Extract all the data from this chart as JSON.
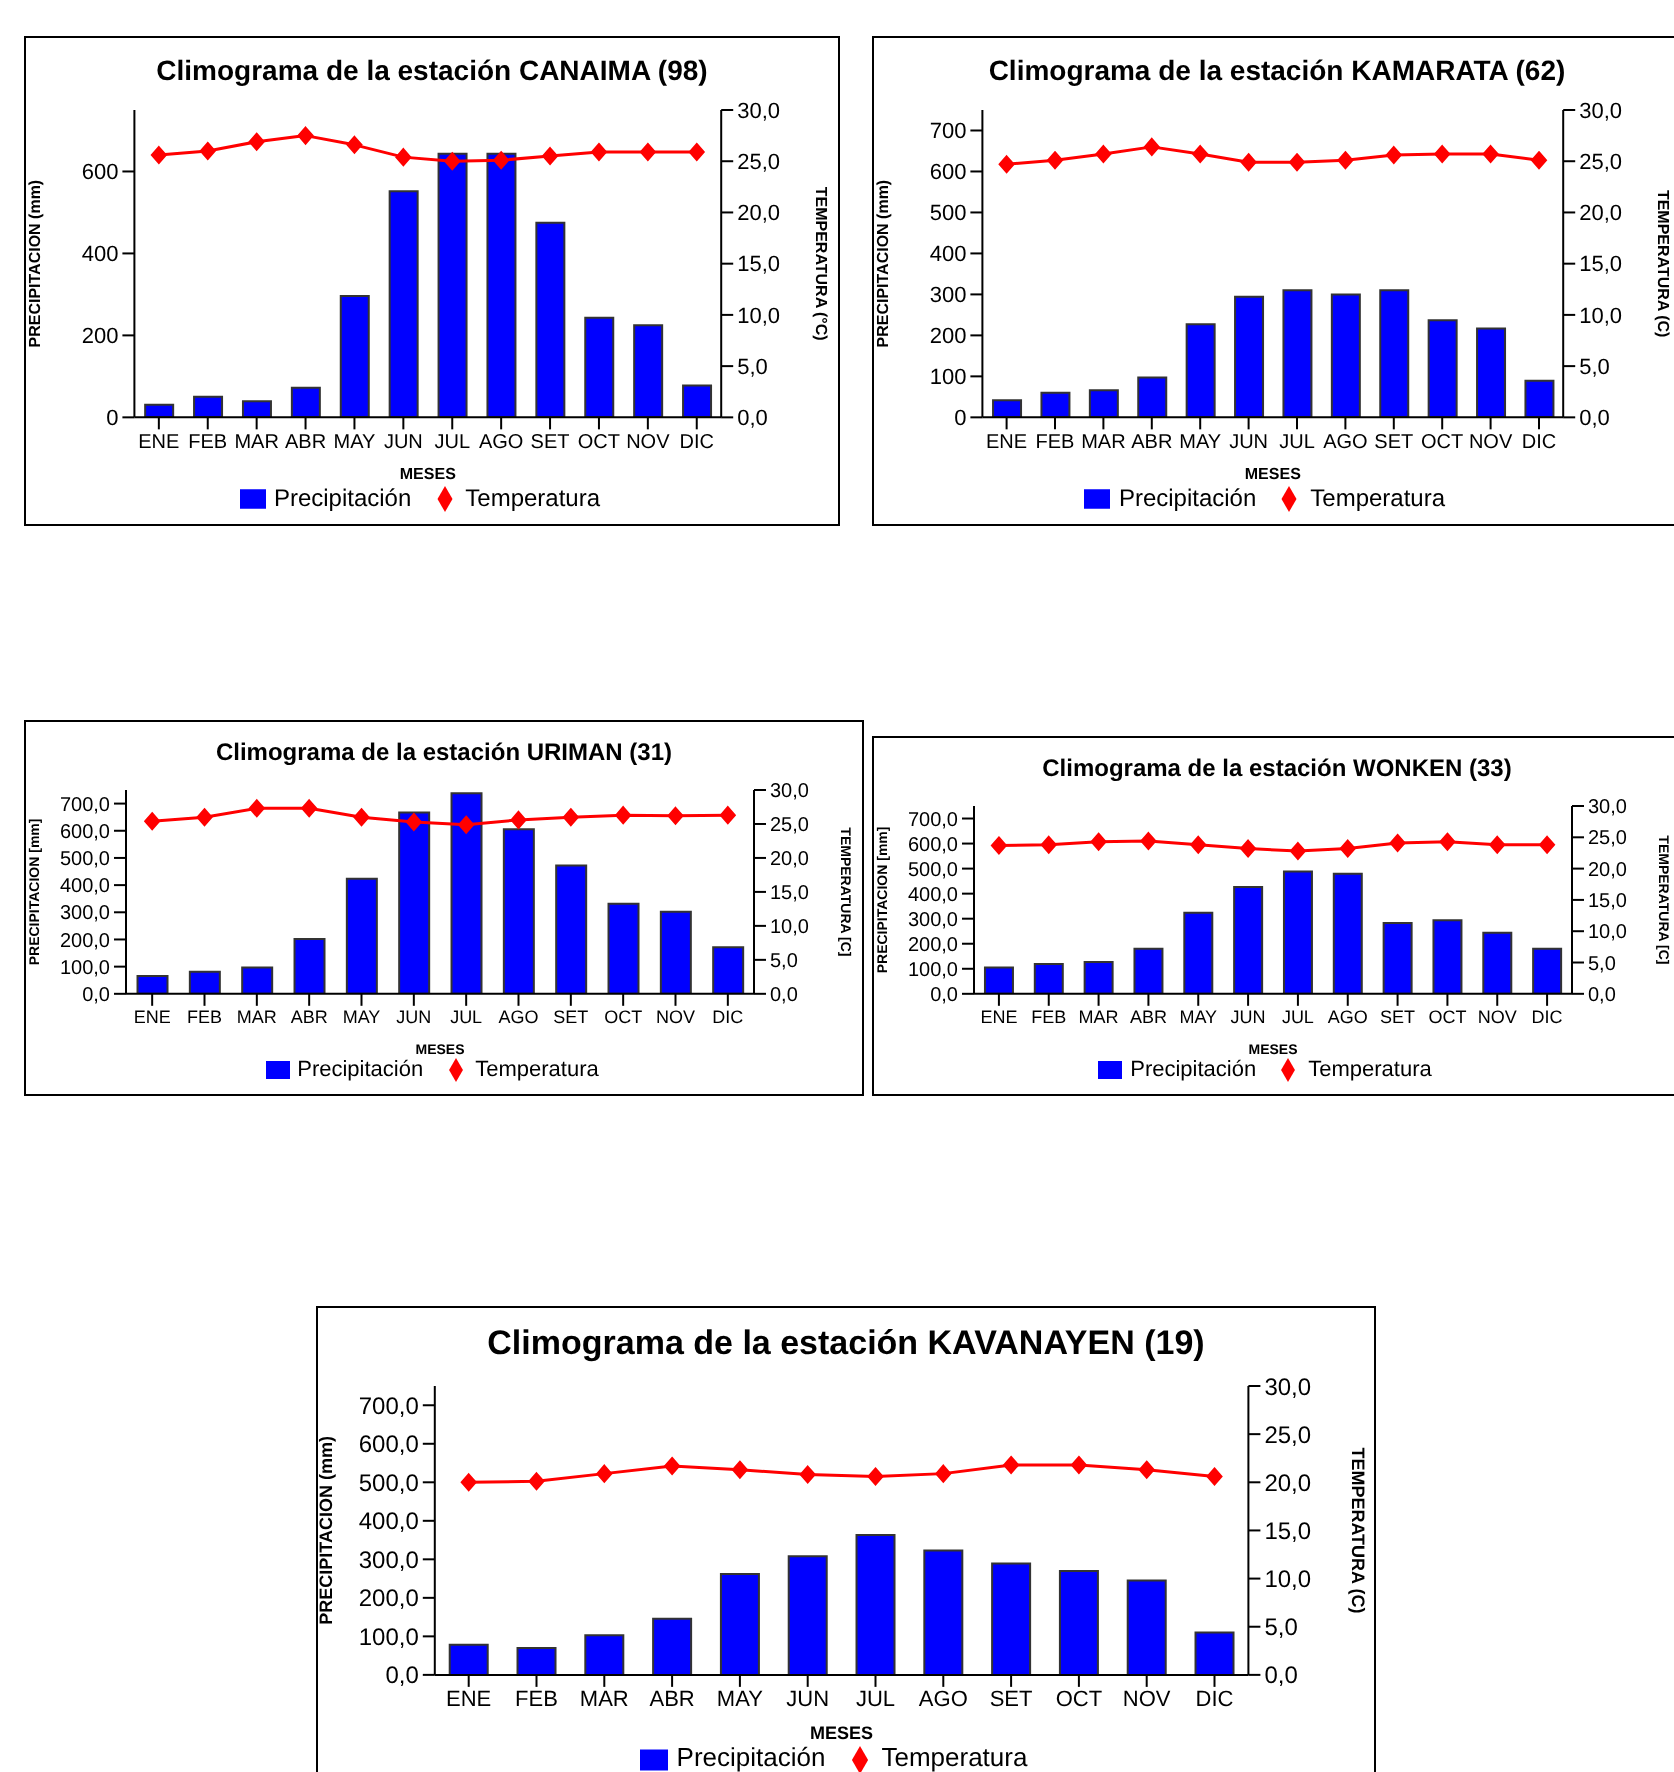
{
  "chart_data": [
    {
      "type": "bar",
      "title": "Climograma de la estación CANAIMA (98)",
      "xlabel": "MESES",
      "ylabel": "PRECIPITACION (mm)",
      "y2label": "TEMPERATURA (°C)",
      "categories": [
        "ENE",
        "FEB",
        "MAR",
        "ABR",
        "MAY",
        "JUN",
        "JUL",
        "AGO",
        "SET",
        "OCT",
        "NOV",
        "DIC"
      ],
      "series": [
        {
          "name": "Precipitación",
          "color": "#0000ff",
          "values": [
            31,
            50,
            39,
            72,
            296,
            552,
            643,
            643,
            475,
            243,
            225,
            78
          ]
        },
        {
          "name": "Temperatura",
          "type": "line",
          "axis": "y2",
          "color": "#ff0000",
          "marker": "diamond",
          "values": [
            25.6,
            26.0,
            26.9,
            27.5,
            26.6,
            25.4,
            25.0,
            25.1,
            25.5,
            25.9,
            25.9,
            25.9
          ]
        }
      ],
      "ylim": [
        0,
        750
      ],
      "yticks": [
        0,
        200,
        400,
        600
      ],
      "y2lim": [
        0,
        30
      ],
      "y2ticks": [
        {
          "value": 0,
          "label": "0,0"
        },
        {
          "value": 5,
          "label": "5,0"
        },
        {
          "value": 10,
          "label": "10,0"
        },
        {
          "value": 15,
          "label": "15,0"
        },
        {
          "value": 20,
          "label": "20,0"
        },
        {
          "value": 25,
          "label": "25,0"
        },
        {
          "value": 30,
          "label": "30,0"
        }
      ],
      "legend": "bottom",
      "grid": false
    },
    {
      "type": "bar",
      "title": "Climograma de la estación KAMARATA (62)",
      "xlabel": "MESES",
      "ylabel": "PRECIPITACION (mm)",
      "y2label": "TEMPERATURA (C)",
      "categories": [
        "ENE",
        "FEB",
        "MAR",
        "ABR",
        "MAY",
        "JUN",
        "JUL",
        "AGO",
        "SET",
        "OCT",
        "NOV",
        "DIC"
      ],
      "series": [
        {
          "name": "Precipitación",
          "color": "#0000ff",
          "values": [
            42,
            60,
            66,
            97,
            227,
            294,
            310,
            300,
            310,
            237,
            217,
            89
          ]
        },
        {
          "name": "Temperatura",
          "type": "line",
          "axis": "y2",
          "color": "#ff0000",
          "marker": "diamond",
          "values": [
            24.7,
            25.1,
            25.7,
            26.4,
            25.7,
            24.9,
            24.9,
            25.1,
            25.6,
            25.7,
            25.7,
            25.1
          ]
        }
      ],
      "ylim": [
        0,
        750
      ],
      "yticks": [
        0,
        100,
        200,
        300,
        400,
        500,
        600,
        700
      ],
      "y2lim": [
        0,
        30
      ],
      "y2ticks": [
        {
          "value": 0,
          "label": "0,0"
        },
        {
          "value": 5,
          "label": "5,0"
        },
        {
          "value": 10,
          "label": "10,0"
        },
        {
          "value": 15,
          "label": "15,0"
        },
        {
          "value": 20,
          "label": "20,0"
        },
        {
          "value": 25,
          "label": "25,0"
        },
        {
          "value": 30,
          "label": "30,0"
        }
      ],
      "legend": "bottom",
      "grid": false
    },
    {
      "type": "bar",
      "title": "Climograma de la estación URIMAN (31)",
      "xlabel": "MESES",
      "ylabel": "PRECIPITACION [mm]",
      "y2label": "TEMPERATURA [C]",
      "categories": [
        "ENE",
        "FEB",
        "MAR",
        "ABR",
        "MAY",
        "JUN",
        "JUL",
        "AGO",
        "SET",
        "OCT",
        "NOV",
        "DIC"
      ],
      "series": [
        {
          "name": "Precipitación",
          "color": "#0000ff",
          "values": [
            66,
            81,
            97,
            202,
            423,
            667,
            738,
            606,
            472,
            331,
            302,
            171
          ]
        },
        {
          "name": "Temperatura",
          "type": "line",
          "axis": "y2",
          "color": "#ff0000",
          "marker": "diamond",
          "values": [
            25.4,
            26.0,
            27.3,
            27.3,
            26.0,
            25.3,
            24.9,
            25.6,
            26.0,
            26.3,
            26.2,
            26.3
          ]
        }
      ],
      "ylim": [
        0,
        750
      ],
      "yticks": [
        {
          "value": 0,
          "label": "0,0"
        },
        {
          "value": 100,
          "label": "100,0"
        },
        {
          "value": 200,
          "label": "200,0"
        },
        {
          "value": 300,
          "label": "300,0"
        },
        {
          "value": 400,
          "label": "400,0"
        },
        {
          "value": 500,
          "label": "500,0"
        },
        {
          "value": 600,
          "label": "600,0"
        },
        {
          "value": 700,
          "label": "700,0"
        }
      ],
      "y2lim": [
        0,
        30
      ],
      "y2ticks": [
        {
          "value": 0,
          "label": "0,0"
        },
        {
          "value": 5,
          "label": "5,0"
        },
        {
          "value": 10,
          "label": "10,0"
        },
        {
          "value": 15,
          "label": "15,0"
        },
        {
          "value": 20,
          "label": "20,0"
        },
        {
          "value": 25,
          "label": "25,0"
        },
        {
          "value": 30,
          "label": "30,0"
        }
      ],
      "legend": "bottom",
      "grid": false
    },
    {
      "type": "bar",
      "title": "Climograma de la estación WONKEN (33)",
      "xlabel": "MESES",
      "ylabel": "PRECIPITACION [mm]",
      "y2label": "TEMPERATURA [C]",
      "categories": [
        "ENE",
        "FEB",
        "MAR",
        "ABR",
        "MAY",
        "JUN",
        "JUL",
        "AGO",
        "SET",
        "OCT",
        "NOV",
        "DIC"
      ],
      "series": [
        {
          "name": "Precipitación",
          "color": "#0000ff",
          "values": [
            105,
            119,
            127,
            180,
            324,
            427,
            488,
            479,
            283,
            294,
            244,
            180
          ]
        },
        {
          "name": "Temperatura",
          "type": "line",
          "axis": "y2",
          "color": "#ff0000",
          "marker": "diamond",
          "values": [
            23.7,
            23.8,
            24.3,
            24.4,
            23.8,
            23.2,
            22.8,
            23.2,
            24.1,
            24.3,
            23.8,
            23.8
          ]
        }
      ],
      "ylim": [
        0,
        750
      ],
      "yticks": [
        {
          "value": 0,
          "label": "0,0"
        },
        {
          "value": 100,
          "label": "100,0"
        },
        {
          "value": 200,
          "label": "200,0"
        },
        {
          "value": 300,
          "label": "300,0"
        },
        {
          "value": 400,
          "label": "400,0"
        },
        {
          "value": 500,
          "label": "500,0"
        },
        {
          "value": 600,
          "label": "600,0"
        },
        {
          "value": 700,
          "label": "700,0"
        }
      ],
      "y2lim": [
        0,
        30
      ],
      "y2ticks": [
        {
          "value": 0,
          "label": "0,0"
        },
        {
          "value": 5,
          "label": "5,0"
        },
        {
          "value": 10,
          "label": "10,0"
        },
        {
          "value": 15,
          "label": "15,0"
        },
        {
          "value": 20,
          "label": "20,0"
        },
        {
          "value": 25,
          "label": "25,0"
        },
        {
          "value": 30,
          "label": "30,0"
        }
      ],
      "legend": "bottom",
      "grid": false
    },
    {
      "type": "bar",
      "title": "Climograma de la estación KAVANAYEN (19)",
      "xlabel": "MESES",
      "ylabel": "PRECIPITACION (mm)",
      "y2label": "TEMPERATURA (C)",
      "categories": [
        "ENE",
        "FEB",
        "MAR",
        "ABR",
        "MAY",
        "JUN",
        "JUL",
        "AGO",
        "SET",
        "OCT",
        "NOV",
        "DIC"
      ],
      "series": [
        {
          "name": "Precipitación",
          "color": "#0000ff",
          "values": [
            78,
            70,
            103,
            146,
            262,
            308,
            363,
            323,
            289,
            270,
            245,
            110
          ]
        },
        {
          "name": "Temperatura",
          "type": "line",
          "axis": "y2",
          "color": "#ff0000",
          "marker": "diamond",
          "values": [
            20.0,
            20.1,
            20.9,
            21.7,
            21.3,
            20.8,
            20.6,
            20.9,
            21.8,
            21.8,
            21.3,
            20.6
          ]
        }
      ],
      "ylim": [
        0,
        750
      ],
      "yticks": [
        {
          "value": 0,
          "label": "0,0"
        },
        {
          "value": 100,
          "label": "100,0"
        },
        {
          "value": 200,
          "label": "200,0"
        },
        {
          "value": 300,
          "label": "300,0"
        },
        {
          "value": 400,
          "label": "400,0"
        },
        {
          "value": 500,
          "label": "500,0"
        },
        {
          "value": 600,
          "label": "600,0"
        },
        {
          "value": 700,
          "label": "700,0"
        }
      ],
      "y2lim": [
        0,
        30
      ],
      "y2ticks": [
        {
          "value": 0,
          "label": "0,0"
        },
        {
          "value": 5,
          "label": "5,0"
        },
        {
          "value": 10,
          "label": "10,0"
        },
        {
          "value": 15,
          "label": "15,0"
        },
        {
          "value": 20,
          "label": "20,0"
        },
        {
          "value": 25,
          "label": "25,0"
        },
        {
          "value": 30,
          "label": "30,0"
        }
      ],
      "legend": "bottom",
      "grid": false
    }
  ]
}
